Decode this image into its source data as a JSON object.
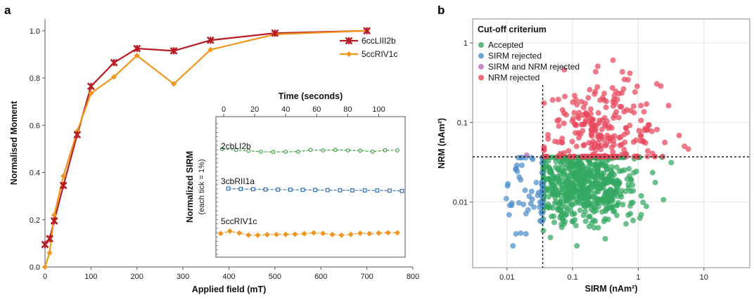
{
  "panels": {
    "a": "a",
    "b": "b"
  },
  "chart_data": [
    {
      "id": "panel-a",
      "type": "line",
      "xlabel": "Applied field (mT)",
      "ylabel": "Normalised Moment",
      "xlim": [
        0,
        800
      ],
      "ylim": [
        0,
        1.05
      ],
      "xticks": [
        0,
        100,
        200,
        300,
        400,
        500,
        600,
        700,
        800
      ],
      "yticks": [
        0.0,
        0.2,
        0.4,
        0.6,
        0.8,
        1.0
      ],
      "ytick_labels": [
        "0.0",
        "0.2",
        "0.4",
        "0.6",
        "0.8",
        "1.0"
      ],
      "legend_placement": "top-right",
      "series": [
        {
          "name": "6ccLIII2b",
          "color": "#b71c23",
          "marker": "x",
          "x": [
            0,
            10,
            20,
            40,
            70,
            100,
            150,
            200,
            280,
            360,
            500,
            700
          ],
          "y": [
            0.095,
            0.12,
            0.195,
            0.345,
            0.56,
            0.765,
            0.865,
            0.925,
            0.915,
            0.96,
            0.99,
            1.0
          ]
        },
        {
          "name": "5ccRIV1c",
          "color": "#f0961e",
          "marker": "diamond",
          "x": [
            0,
            10,
            20,
            40,
            70,
            100,
            150,
            200,
            280,
            360,
            500,
            700
          ],
          "y": [
            0.0,
            0.06,
            0.22,
            0.385,
            0.575,
            0.735,
            0.805,
            0.895,
            0.775,
            0.92,
            0.985,
            1.0
          ]
        }
      ]
    },
    {
      "id": "panel-a-inset",
      "type": "line",
      "xlabel": "Time (seconds)",
      "ylabel": "Normalized SIRM",
      "ylabel2": "(each tick = 1%)",
      "xlim": [
        -5,
        117
      ],
      "xticks": [
        0,
        20,
        40,
        60,
        80,
        100
      ],
      "series": [
        {
          "name": "2cbLI2b",
          "color": "#3aa541",
          "marker": "circle",
          "x": [
            -1,
            8,
            16,
            24,
            32,
            40,
            48,
            56,
            64,
            72,
            80,
            88,
            96,
            104,
            112
          ],
          "y": [
            2.4,
            1.8,
            1.2,
            0.5,
            0.4,
            0.5,
            0.6,
            1.8,
            1.5,
            1.8,
            1.5,
            1.3,
            0.6,
            1.6,
            1.5
          ]
        },
        {
          "name": "3cbRII1a",
          "color": "#2f6fb5",
          "marker": "square",
          "x": [
            3,
            11,
            19,
            27,
            35,
            43,
            51,
            59,
            67,
            75,
            83,
            91,
            99,
            107,
            115
          ],
          "y": [
            0.8,
            0.5,
            0.35,
            0.15,
            0.05,
            0.0,
            -0.1,
            -0.2,
            -0.3,
            -0.4,
            -0.45,
            -0.5,
            -0.55,
            -0.65,
            -0.9
          ]
        },
        {
          "name": "5ccRIV1c",
          "color": "#f0961e",
          "marker": "diamond",
          "x": [
            -2,
            4,
            10,
            16,
            22,
            28,
            34,
            40,
            46,
            52,
            58,
            64,
            70,
            76,
            82,
            88,
            94,
            100,
            106,
            112
          ],
          "y": [
            0.3,
            2.0,
            0.6,
            -0.8,
            -0.9,
            -0.5,
            -0.4,
            -0.3,
            -0.2,
            0.2,
            0.8,
            0.4,
            -0.4,
            -0.9,
            -0.3,
            0.5,
            0.2,
            0.6,
            0.9,
            0.8
          ]
        }
      ]
    },
    {
      "id": "panel-b",
      "type": "scatter",
      "xlabel": "SIRM (nAm²)",
      "ylabel": "NRM (nAm²)",
      "xscale": "log",
      "yscale": "log",
      "xlim": [
        0.003,
        50
      ],
      "ylim": [
        0.0015,
        2
      ],
      "xticks": [
        0.01,
        0.1,
        1,
        10
      ],
      "xtick_labels": [
        "0.01",
        "0.1",
        "1",
        "10"
      ],
      "yticks": [
        0.01,
        0.1,
        1
      ],
      "ytick_labels": [
        "0.01",
        "0.1",
        "1"
      ],
      "grid": true,
      "thresholds": {
        "sirm": 0.035,
        "nrm": 0.037
      },
      "legend_title": "Cut-off criterium",
      "legend_placement": "top-left",
      "categories": [
        {
          "name": "Accepted",
          "color": "#33a861"
        },
        {
          "name": "SIRM rejected",
          "color": "#4e8fca"
        },
        {
          "name": "SIRM and NRM rejected",
          "color": "#b86fb5"
        },
        {
          "name": "NRM rejected",
          "color": "#e8475b"
        }
      ],
      "points": {
        "accepted_approx_count": 700,
        "sirm_rejected_approx_count": 60,
        "sirm_and_nrm_rejected_approx_count": 1,
        "nrm_rejected_approx_count": 260
      }
    }
  ]
}
